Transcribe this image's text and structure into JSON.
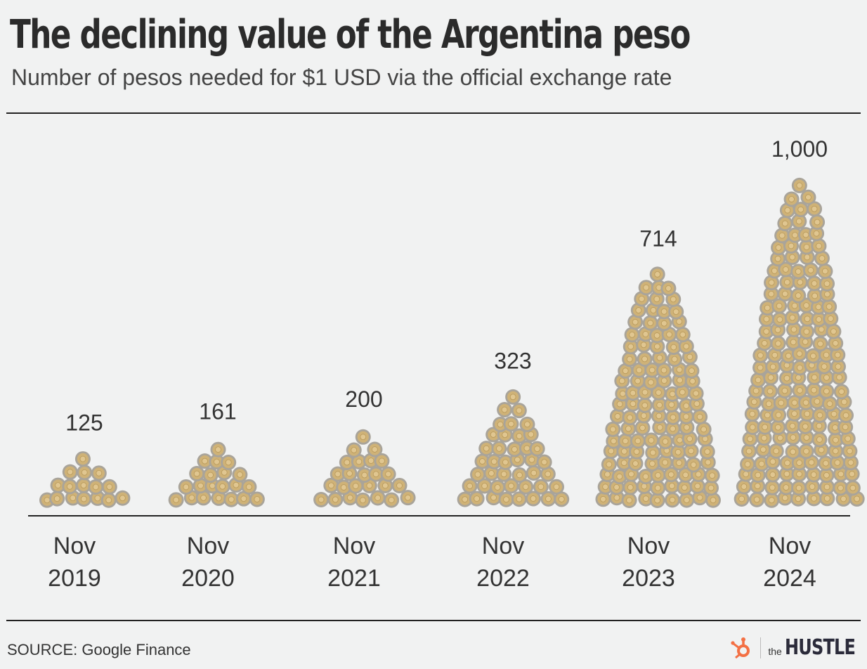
{
  "title": "The declining value of the Argentina peso",
  "subtitle": "Number of pesos needed for $1 USD via the official exchange rate",
  "source": "SOURCE: Google Finance",
  "brand": {
    "prefix": "the",
    "name": "HUSTLE",
    "logo": "hubspot-sprocket-icon"
  },
  "colors": {
    "background": "#f1f2f2",
    "coin_rim": "#a9a49a",
    "coin_face": "#cfb277",
    "coin_center": "#e0c690",
    "text": "#333333",
    "brand_accent": "#f37044"
  },
  "chart_data": {
    "type": "bar",
    "mark": "stacked coin piles",
    "categories": [
      "Nov\n2019",
      "Nov\n2020",
      "Nov\n2021",
      "Nov\n2022",
      "Nov\n2023",
      "Nov\n2024"
    ],
    "category_lines": [
      [
        "Nov",
        "2019"
      ],
      [
        "Nov",
        "2020"
      ],
      [
        "Nov",
        "2021"
      ],
      [
        "Nov",
        "2022"
      ],
      [
        "Nov",
        "2023"
      ],
      [
        "Nov",
        "2024"
      ]
    ],
    "values": [
      125,
      161,
      200,
      323,
      714,
      1000
    ],
    "labels": [
      "125",
      "161",
      "200",
      "323",
      "714",
      "1,000"
    ],
    "ylim": [
      0,
      1000
    ],
    "xlabel": "",
    "ylabel": "",
    "grid": false
  }
}
